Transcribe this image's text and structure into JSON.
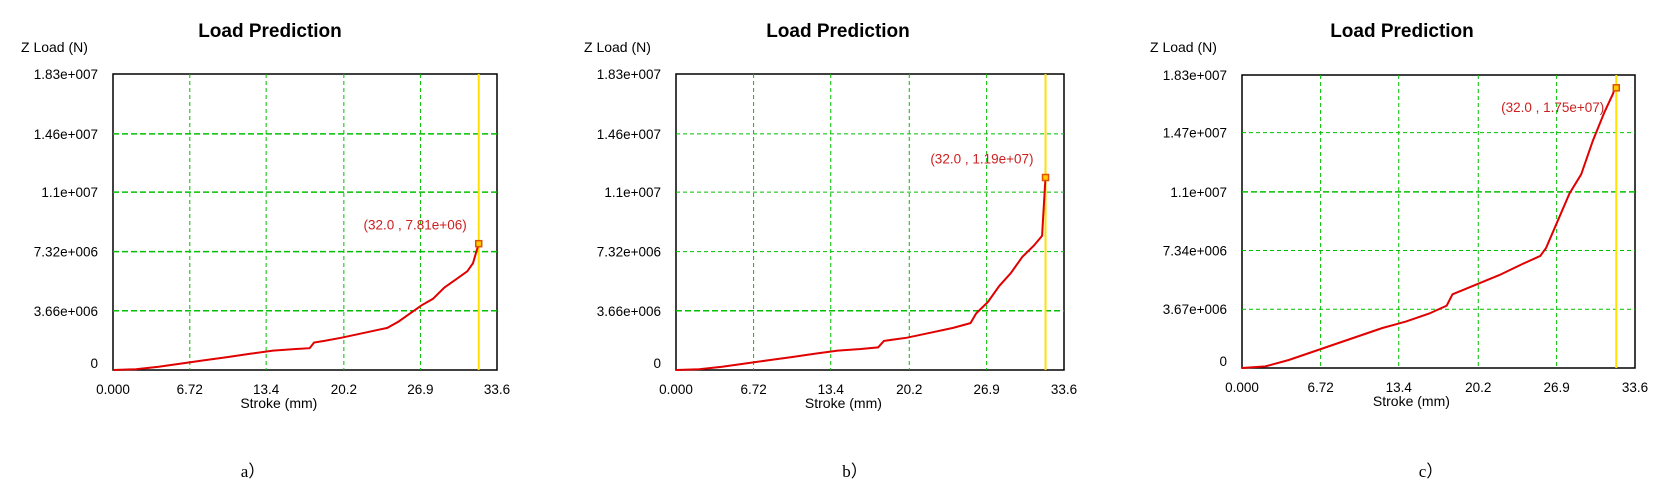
{
  "chart_data": [
    {
      "type": "line",
      "title": "Load Prediction",
      "ylabel": "Z Load (N)",
      "xlabel": "Stroke (mm)",
      "caption": "a）",
      "xlim": [
        0,
        33.6
      ],
      "ylim": [
        0,
        18300000
      ],
      "x_ticks": [
        0,
        6.72,
        13.4,
        20.2,
        26.9,
        33.6
      ],
      "x_tick_labels": [
        "0.000",
        "6.72",
        "13.4",
        "20.2",
        "26.9",
        "33.6"
      ],
      "y_ticks": [
        0,
        3660000,
        7320000,
        11000000,
        14600000,
        18300000
      ],
      "y_tick_labels": [
        "0",
        "3.66e+006",
        "7.32e+006",
        "1.1e+007",
        "1.46e+007",
        "1.83e+007"
      ],
      "major_grid_y": [
        3660000,
        7320000,
        11000000,
        14600000
      ],
      "cursor_x": 32.0,
      "annotation": "(32.0 , 7.81e+06)",
      "marker": [
        32.0,
        7810000
      ],
      "series": [
        {
          "x": [
            0,
            2,
            4,
            6,
            8,
            10,
            12,
            14,
            16,
            17.2,
            17.6,
            18.5,
            20,
            22,
            24,
            25,
            26,
            27,
            28,
            29,
            30,
            31,
            31.5,
            32.0
          ],
          "y": [
            0,
            50000,
            200000,
            400000,
            600000,
            800000,
            1000000,
            1200000,
            1300000,
            1350000,
            1700000,
            1800000,
            2000000,
            2300000,
            2600000,
            3000000,
            3500000,
            4000000,
            4400000,
            5100000,
            5600000,
            6100000,
            6600000,
            7810000
          ]
        }
      ]
    },
    {
      "type": "line",
      "title": "Load Prediction",
      "ylabel": "Z Load (N)",
      "xlabel": "Stroke (mm)",
      "caption": "b）",
      "xlim": [
        0,
        33.6
      ],
      "ylim": [
        0,
        18300000
      ],
      "x_ticks": [
        0,
        6.72,
        13.4,
        20.2,
        26.9,
        33.6
      ],
      "x_tick_labels": [
        "0.000",
        "6.72",
        "13.4",
        "20.2",
        "26.9",
        "33.6"
      ],
      "y_ticks": [
        0,
        3660000,
        7320000,
        11000000,
        14600000,
        18300000
      ],
      "y_tick_labels": [
        "0",
        "3.66e+006",
        "7.32e+006",
        "1.1e+007",
        "1.46e+007",
        "1.83e+007"
      ],
      "major_grid_y": [
        3660000
      ],
      "cursor_x": 32.0,
      "annotation": "(32.0 , 1.19e+07)",
      "marker": [
        32.0,
        11900000
      ],
      "series": [
        {
          "x": [
            0,
            2,
            4,
            6,
            8,
            10,
            12,
            14,
            16,
            17.5,
            18,
            20,
            22,
            24,
            25.5,
            26,
            27,
            28,
            29,
            30,
            31,
            31.7,
            31.8,
            32.0
          ],
          "y": [
            0,
            50000,
            200000,
            400000,
            600000,
            800000,
            1000000,
            1200000,
            1300000,
            1400000,
            1800000,
            2000000,
            2300000,
            2600000,
            2900000,
            3500000,
            4200000,
            5200000,
            6000000,
            7000000,
            7700000,
            8300000,
            9500000,
            11900000
          ]
        }
      ]
    },
    {
      "type": "line",
      "title": "Load Prediction",
      "ylabel": "Z Load (N)",
      "xlabel": "Stroke (mm)",
      "caption": "c）",
      "xlim": [
        0,
        33.6
      ],
      "ylim": [
        0,
        18300000
      ],
      "x_ticks": [
        0,
        6.72,
        13.4,
        20.2,
        26.9,
        33.6
      ],
      "x_tick_labels": [
        "0.000",
        "6.72",
        "13.4",
        "20.2",
        "26.9",
        "33.6"
      ],
      "y_ticks": [
        0,
        3670000,
        7340000,
        11000000,
        14700000,
        18300000
      ],
      "y_tick_labels": [
        "0",
        "3.67e+006",
        "7.34e+006",
        "1.1e+007",
        "1.47e+007",
        "1.83e+007"
      ],
      "major_grid_y": [
        11000000
      ],
      "cursor_x": 32.0,
      "annotation": "(32.0 , 1.75e+07)",
      "marker": [
        32.0,
        17500000
      ],
      "series": [
        {
          "x": [
            0,
            2,
            4,
            6,
            8,
            10,
            12,
            14,
            16,
            17.5,
            18,
            20,
            22,
            24,
            25.5,
            26,
            27,
            28,
            29,
            30,
            31,
            31.7,
            31.8,
            32.0
          ],
          "y": [
            0,
            100000,
            500000,
            1000000,
            1500000,
            2000000,
            2500000,
            2900000,
            3400000,
            3900000,
            4600000,
            5200000,
            5800000,
            6500000,
            7000000,
            7500000,
            9200000,
            10900000,
            12100000,
            14200000,
            16000000,
            17100000,
            17300000,
            17500000
          ]
        }
      ]
    }
  ]
}
